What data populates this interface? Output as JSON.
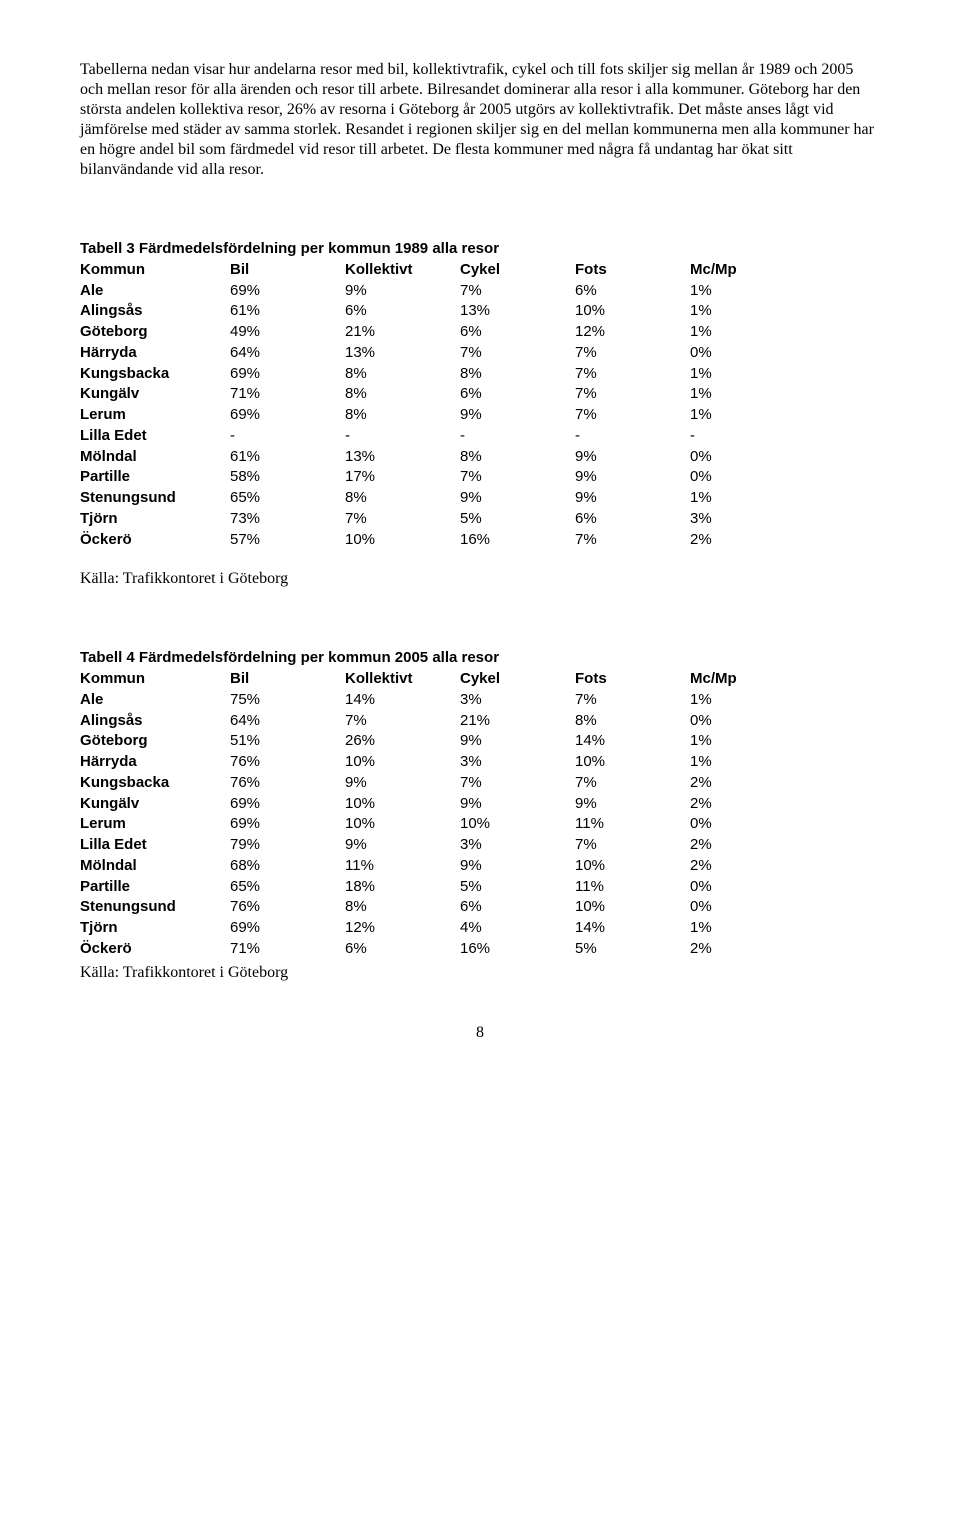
{
  "intro": "Tabellerna nedan visar hur andelarna resor med bil, kollektivtrafik, cykel och till fots skiljer sig mellan år 1989 och 2005 och mellan resor för alla ärenden och resor till arbete. Bilresandet dominerar alla resor i alla kommuner. Göteborg har den största andelen kollektiva resor, 26% av resorna i Göteborg år 2005 utgörs av kollektivtrafik. Det måste anses lågt vid jämförelse med städer av samma storlek. Resandet i regionen skiljer sig en del mellan kommunerna men alla kommuner har en högre andel bil som färdmedel vid resor till arbetet. De flesta kommuner med några få undantag har ökat sitt bilanvändande vid alla resor.",
  "table3": {
    "title": "Tabell 3 Färdmedelsfördelning per kommun 1989 alla resor",
    "columns": [
      "Kommun",
      "Bil",
      "Kollektivt",
      "Cykel",
      "Fots",
      "Mc/Mp"
    ],
    "rows": [
      [
        "Ale",
        "69%",
        "9%",
        "7%",
        "6%",
        "1%"
      ],
      [
        "Alingsås",
        "61%",
        "6%",
        "13%",
        "10%",
        "1%"
      ],
      [
        "Göteborg",
        "49%",
        "21%",
        "6%",
        "12%",
        "1%"
      ],
      [
        "Härryda",
        "64%",
        "13%",
        "7%",
        "7%",
        "0%"
      ],
      [
        "Kungsbacka",
        "69%",
        "8%",
        "8%",
        "7%",
        "1%"
      ],
      [
        "Kungälv",
        "71%",
        "8%",
        "6%",
        "7%",
        "1%"
      ],
      [
        "Lerum",
        "69%",
        "8%",
        "9%",
        "7%",
        "1%"
      ],
      [
        "Lilla Edet",
        "-",
        "-",
        "-",
        "-",
        "-"
      ],
      [
        "Mölndal",
        "61%",
        "13%",
        "8%",
        "9%",
        "0%"
      ],
      [
        "Partille",
        "58%",
        "17%",
        "7%",
        "9%",
        "0%"
      ],
      [
        "Stenungsund",
        "65%",
        "8%",
        "9%",
        "9%",
        "1%"
      ],
      [
        "Tjörn",
        "73%",
        "7%",
        "5%",
        "6%",
        "3%"
      ],
      [
        "Öckerö",
        "57%",
        "10%",
        "16%",
        "7%",
        "2%"
      ]
    ],
    "source": "Källa: Trafikkontoret i Göteborg"
  },
  "table4": {
    "title": "Tabell 4 Färdmedelsfördelning per kommun 2005 alla resor",
    "columns": [
      "Kommun",
      "Bil",
      "Kollektivt",
      "Cykel",
      "Fots",
      "Mc/Mp"
    ],
    "rows": [
      [
        "Ale",
        "75%",
        "14%",
        "3%",
        "7%",
        "1%"
      ],
      [
        "Alingsås",
        "64%",
        "7%",
        "21%",
        "8%",
        "0%"
      ],
      [
        "Göteborg",
        "51%",
        "26%",
        "9%",
        "14%",
        "1%"
      ],
      [
        "Härryda",
        "76%",
        "10%",
        "3%",
        "10%",
        "1%"
      ],
      [
        "Kungsbacka",
        "76%",
        "9%",
        "7%",
        "7%",
        "2%"
      ],
      [
        "Kungälv",
        "69%",
        "10%",
        "9%",
        "9%",
        "2%"
      ],
      [
        "Lerum",
        "69%",
        "10%",
        "10%",
        "11%",
        "0%"
      ],
      [
        "Lilla Edet",
        "79%",
        "9%",
        "3%",
        "7%",
        "2%"
      ],
      [
        "Mölndal",
        "68%",
        "11%",
        "9%",
        "10%",
        "2%"
      ],
      [
        "Partille",
        "65%",
        "18%",
        "5%",
        "11%",
        "0%"
      ],
      [
        "Stenungsund",
        "76%",
        "8%",
        "6%",
        "10%",
        "0%"
      ],
      [
        "Tjörn",
        "69%",
        "12%",
        "4%",
        "14%",
        "1%"
      ],
      [
        "Öckerö",
        "71%",
        "6%",
        "16%",
        "5%",
        "2%"
      ]
    ],
    "source": "Källa: Trafikkontoret i Göteborg"
  },
  "pageNumber": "8"
}
